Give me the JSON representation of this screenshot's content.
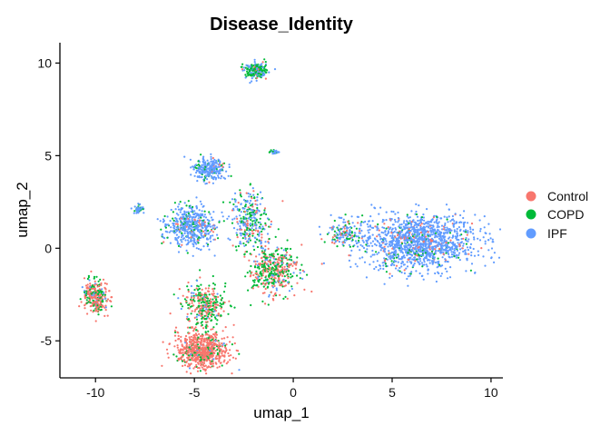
{
  "chart_data": {
    "type": "scatter",
    "title": "Disease_Identity",
    "xlabel": "umap_1",
    "ylabel": "umap_2",
    "xlim": [
      -11.8,
      10.6
    ],
    "ylim": [
      -7.0,
      11.1
    ],
    "xticks": [
      -10,
      -5,
      0,
      5,
      10
    ],
    "yticks": [
      -5,
      0,
      5,
      10
    ],
    "xtick_labels": [
      "-10",
      "-5",
      "0",
      "5",
      "10"
    ],
    "ytick_labels": [
      "-5",
      "0",
      "5",
      "10"
    ],
    "grid": false,
    "legend_position": "right",
    "series": [
      {
        "name": "Control",
        "color": "#F8766D"
      },
      {
        "name": "COPD",
        "color": "#00BA38"
      },
      {
        "name": "IPF",
        "color": "#619CFF"
      }
    ],
    "clusters": [
      {
        "label": "right-large",
        "center": [
          6.3,
          0.3
        ],
        "spread": [
          2.6,
          1.35
        ],
        "weights": [
          0.07,
          0.05,
          0.88
        ]
      },
      {
        "label": "bottom-blob",
        "center": [
          -4.6,
          -5.5
        ],
        "spread": [
          1.2,
          0.9
        ],
        "weights": [
          0.85,
          0.13,
          0.02
        ]
      },
      {
        "label": "left-blob",
        "center": [
          -10.0,
          -2.6
        ],
        "spread": [
          0.55,
          0.85
        ],
        "weights": [
          0.6,
          0.3,
          0.1
        ]
      },
      {
        "label": "center-arm",
        "center": [
          -1.0,
          -1.2
        ],
        "spread": [
          1.1,
          1.2
        ],
        "weights": [
          0.45,
          0.45,
          0.1
        ]
      },
      {
        "label": "middle-left",
        "center": [
          -5.2,
          1.2
        ],
        "spread": [
          1.2,
          1.0
        ],
        "weights": [
          0.05,
          0.15,
          0.8
        ]
      },
      {
        "label": "upper-middle",
        "center": [
          -4.2,
          4.3
        ],
        "spread": [
          0.7,
          0.55
        ],
        "weights": [
          0.05,
          0.1,
          0.85
        ]
      },
      {
        "label": "top-cluster",
        "center": [
          -1.9,
          9.6
        ],
        "spread": [
          0.5,
          0.4
        ],
        "weights": [
          0.05,
          0.55,
          0.4
        ]
      },
      {
        "label": "small-island",
        "center": [
          -7.8,
          2.1
        ],
        "spread": [
          0.25,
          0.2
        ],
        "weights": [
          0.0,
          0.2,
          0.8
        ]
      },
      {
        "label": "small-top",
        "center": [
          -1.0,
          5.2
        ],
        "spread": [
          0.25,
          0.1
        ],
        "weights": [
          0.0,
          0.4,
          0.6
        ]
      },
      {
        "label": "mid-bridge",
        "center": [
          -2.2,
          1.5
        ],
        "spread": [
          0.8,
          1.5
        ],
        "weights": [
          0.15,
          0.35,
          0.5
        ]
      },
      {
        "label": "lower-column",
        "center": [
          -4.5,
          -3.0
        ],
        "spread": [
          1.0,
          1.0
        ],
        "weights": [
          0.4,
          0.5,
          0.1
        ]
      },
      {
        "label": "right-bridge",
        "center": [
          2.6,
          0.8
        ],
        "spread": [
          0.8,
          0.6
        ],
        "weights": [
          0.15,
          0.25,
          0.6
        ]
      }
    ]
  }
}
